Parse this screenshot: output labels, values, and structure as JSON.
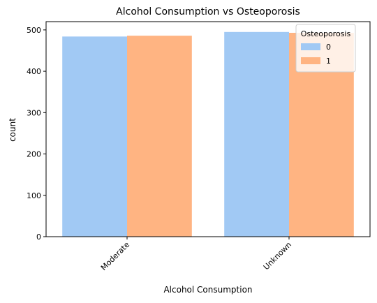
{
  "chart_data": {
    "type": "bar",
    "title": "Alcohol Consumption vs Osteoporosis",
    "xlabel": "Alcohol Consumption",
    "ylabel": "count",
    "categories": [
      "Moderate",
      "Unknown"
    ],
    "series": [
      {
        "name": "0",
        "values": [
          484,
          495
        ],
        "color": "#a1c9f4"
      },
      {
        "name": "1",
        "values": [
          486,
          493
        ],
        "color": "#ffb482"
      }
    ],
    "ylim": [
      0,
      520
    ],
    "yticks": [
      0,
      100,
      200,
      300,
      400,
      500
    ],
    "legend": {
      "title": "Osteoporosis",
      "placement": "top-right"
    },
    "grid": false
  }
}
